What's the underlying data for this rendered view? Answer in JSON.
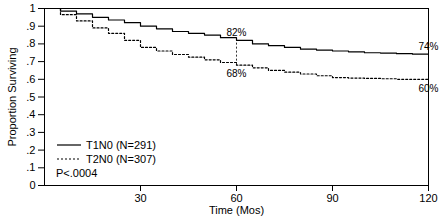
{
  "chart_data": {
    "type": "line",
    "xlabel": "Time (Mos)",
    "ylabel": "Proportion Surviving",
    "x": [
      0,
      5,
      10,
      15,
      20,
      25,
      30,
      35,
      40,
      45,
      50,
      55,
      60,
      65,
      70,
      75,
      80,
      85,
      90,
      95,
      100,
      105,
      110,
      115,
      120
    ],
    "series": [
      {
        "name": "T1N0 (N=291)",
        "color": "#000000",
        "line_style": "solid",
        "values": [
          1.0,
          0.985,
          0.97,
          0.95,
          0.935,
          0.92,
          0.9,
          0.885,
          0.87,
          0.86,
          0.85,
          0.835,
          0.82,
          0.8,
          0.79,
          0.78,
          0.77,
          0.765,
          0.76,
          0.755,
          0.75,
          0.748,
          0.745,
          0.742,
          0.74
        ]
      },
      {
        "name": "T2N0 (N=307)",
        "color": "#000000",
        "line_style": "dotted",
        "values": [
          1.0,
          0.965,
          0.93,
          0.89,
          0.86,
          0.82,
          0.78,
          0.76,
          0.74,
          0.725,
          0.71,
          0.695,
          0.68,
          0.665,
          0.65,
          0.64,
          0.63,
          0.62,
          0.61,
          0.607,
          0.605,
          0.603,
          0.6,
          0.6,
          0.6
        ]
      }
    ],
    "annotations": [
      {
        "text": "82%",
        "x": 60,
        "y": 0.82
      },
      {
        "text": "68%",
        "x": 60,
        "y": 0.68
      },
      {
        "text": "74%",
        "x": 120,
        "y": 0.74
      },
      {
        "text": "60%",
        "x": 120,
        "y": 0.6
      },
      {
        "text": "P<.0004"
      }
    ],
    "xlim": [
      0,
      120
    ],
    "xticks": [
      30,
      60,
      90,
      120
    ],
    "ylim": [
      0,
      1
    ],
    "yticks": [
      0,
      {
        "value": 0.1,
        "label": ".1"
      },
      {
        "value": 0.2,
        "label": ".2"
      },
      {
        "value": 0.3,
        "label": ".3"
      },
      {
        "value": 0.4,
        "label": ".4"
      },
      {
        "value": 0.5,
        "label": ".5"
      },
      {
        "value": 0.6,
        "label": ".6"
      },
      {
        "value": 0.7,
        "label": ".7"
      },
      {
        "value": 0.8,
        "label": ".8"
      },
      {
        "value": 0.9,
        "label": ".9"
      },
      1
    ],
    "legend": "lower left",
    "grid": false
  }
}
